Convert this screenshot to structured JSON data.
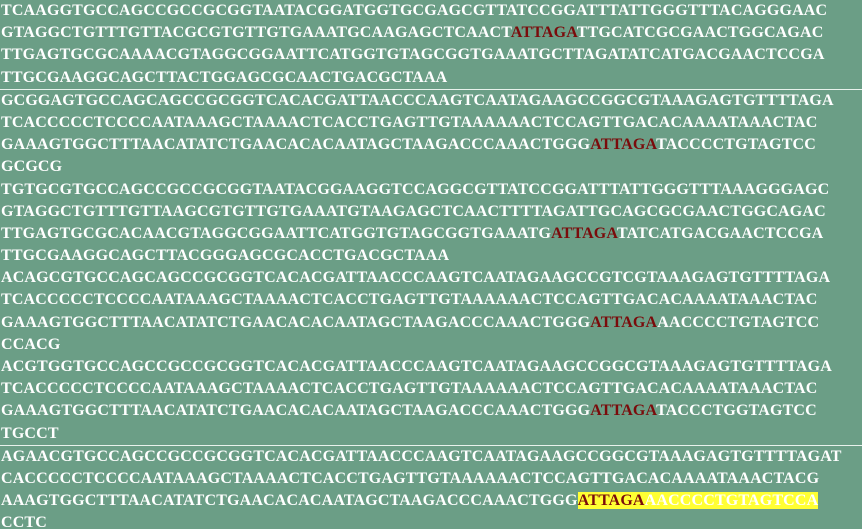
{
  "colors": {
    "background": "#6b9e86",
    "text": "#ffffff",
    "motif": "#7a0b0b",
    "highlight": "#ffff33",
    "separator": "#e8f2ec"
  },
  "blocks": [
    {
      "lines": [
        [
          {
            "t": "TCAAGGTGCCAGCCGCCGCGGTAATACGGATGGTGCGAGCGTTATCCGGATTTATTGGGTTTACAGGGAAC"
          }
        ],
        [
          {
            "t": "GTAGGCTGTTTGTTACGCGTGTTGTGAAATGCAAGAGCTCAACT"
          },
          {
            "t": "ATTAGA",
            "s": "motif"
          },
          {
            "t": "TTGCATCGCGAACTGGCAGAC"
          }
        ],
        [
          {
            "t": "TTGAGTGCGCAAAACGTAGGCGGAATTCATGGTGTAGCGGTGAAATGCTTAGATATCATGACGAACTCCGA"
          }
        ],
        [
          {
            "t": "TTGCGAAGGCAGCTTACTGGAGCGCAACTGACGCTAAA"
          }
        ]
      ]
    },
    {
      "lines": [
        [
          {
            "t": "GCGGAGTGCCAGCAGCCGCGGTCACACGATTAACCCAAGTCAATAGAAGCCGGCGTAAAGAGTGTTTTAGA"
          }
        ],
        [
          {
            "t": "TCACCCCCTCCCCAATAAAGCTAAAACTCACCTGAGTTGTAAAAAACTCCAGTTGACACAAAATAAACTAC"
          }
        ],
        [
          {
            "t": "GAAAGTGGCTTTAACATATCTGAACACACAATAGCTAAGACCCAAACTGGG"
          },
          {
            "t": "ATTAGA",
            "s": "motif"
          },
          {
            "t": "TACCCCTGTAGTCC"
          }
        ],
        [
          {
            "t": "GCGCG"
          }
        ],
        [
          {
            "t": "TGTGCGTGCCAGCCGCCGCGGTAATACGGAAGGTCCAGGCGTTATCCGGATTTATTGGGTTTAAAGGGAGC"
          }
        ],
        [
          {
            "t": "GTAGGCTGTTTGTTAAGCGTGTTGTGAAATGTAAGAGCTCAACTTTTAGATTGCAGCGCGAACTGGCAGAC"
          }
        ],
        [
          {
            "t": "TTGAGTGCGCACAACGTAGGCGGAATTCATGGTGTAGCGGTGAAATG"
          },
          {
            "t": "ATTAGA",
            "s": "motif"
          },
          {
            "t": "TATCATGACGAACTCCGA"
          }
        ],
        [
          {
            "t": "TTGCGAAGGCAGCTTACGGGAGCGCACCTGACGCTAAA"
          }
        ],
        [
          {
            "t": "ACAGCGTGCCAGCAGCCGCGGTCACACGATTAACCCAAGTCAATAGAAGCCGTCGTAAAGAGTGTTTTAGA"
          }
        ],
        [
          {
            "t": "TCACCCCCTCCCCAATAAAGCTAAAACTCACCTGAGTTGTAAAAAACTCCAGTTGACACAAAATAAACTAC"
          }
        ],
        [
          {
            "t": "GAAAGTGGCTTTAACATATCTGAACACACAATAGCTAAGACCCAAACTGGG"
          },
          {
            "t": "ATTAGA",
            "s": "motif"
          },
          {
            "t": "AACCCCTGTAGTCC"
          }
        ],
        [
          {
            "t": "CCACG"
          }
        ],
        [
          {
            "t": "ACGTGGTGCCAGCCGCCGCGGTCACACGATTAACCCAAGTCAATAGAAGCCGGCGTAAAGAGTGTTTTAGA"
          }
        ],
        [
          {
            "t": "TCACCCCCTCCCCAATAAAGCTAAAACTCACCTGAGTTGTAAAAAACTCCAGTTGACACAAAATAAACTAC"
          }
        ],
        [
          {
            "t": "GAAAGTGGCTTTAACATATCTGAACACACAATAGCTAAGACCCAAACTGGG"
          },
          {
            "t": "ATTAGA",
            "s": "motif"
          },
          {
            "t": "TACCCTGGTAGTCC"
          }
        ],
        [
          {
            "t": "TGCCT"
          }
        ]
      ]
    },
    {
      "lines": [
        [
          {
            "t": "AGAACGTGCCAGCCGCCGCGGTCACACGATTAACCCAAGTCAATAGAAGCCGGCGTAAAGAGTGTTTTAGAT"
          }
        ],
        [
          {
            "t": "CACCCCCTCCCCAATAAAGCTAAAACTCACCTGAGTTGTAAAAAACTCCAGTTGACACAAAATAAACTACG"
          }
        ],
        [
          {
            "t": "AAAGTGGCTTTAACATATCTGAACACACAATAGCTAAGACCCAAACTGGG"
          },
          {
            "t": "ATTAGA",
            "s": "hl-motif"
          },
          {
            "t": "AACCCCTGTAGTCCA",
            "s": "hl-tail"
          }
        ],
        [
          {
            "t": "CCTC"
          }
        ]
      ]
    }
  ]
}
